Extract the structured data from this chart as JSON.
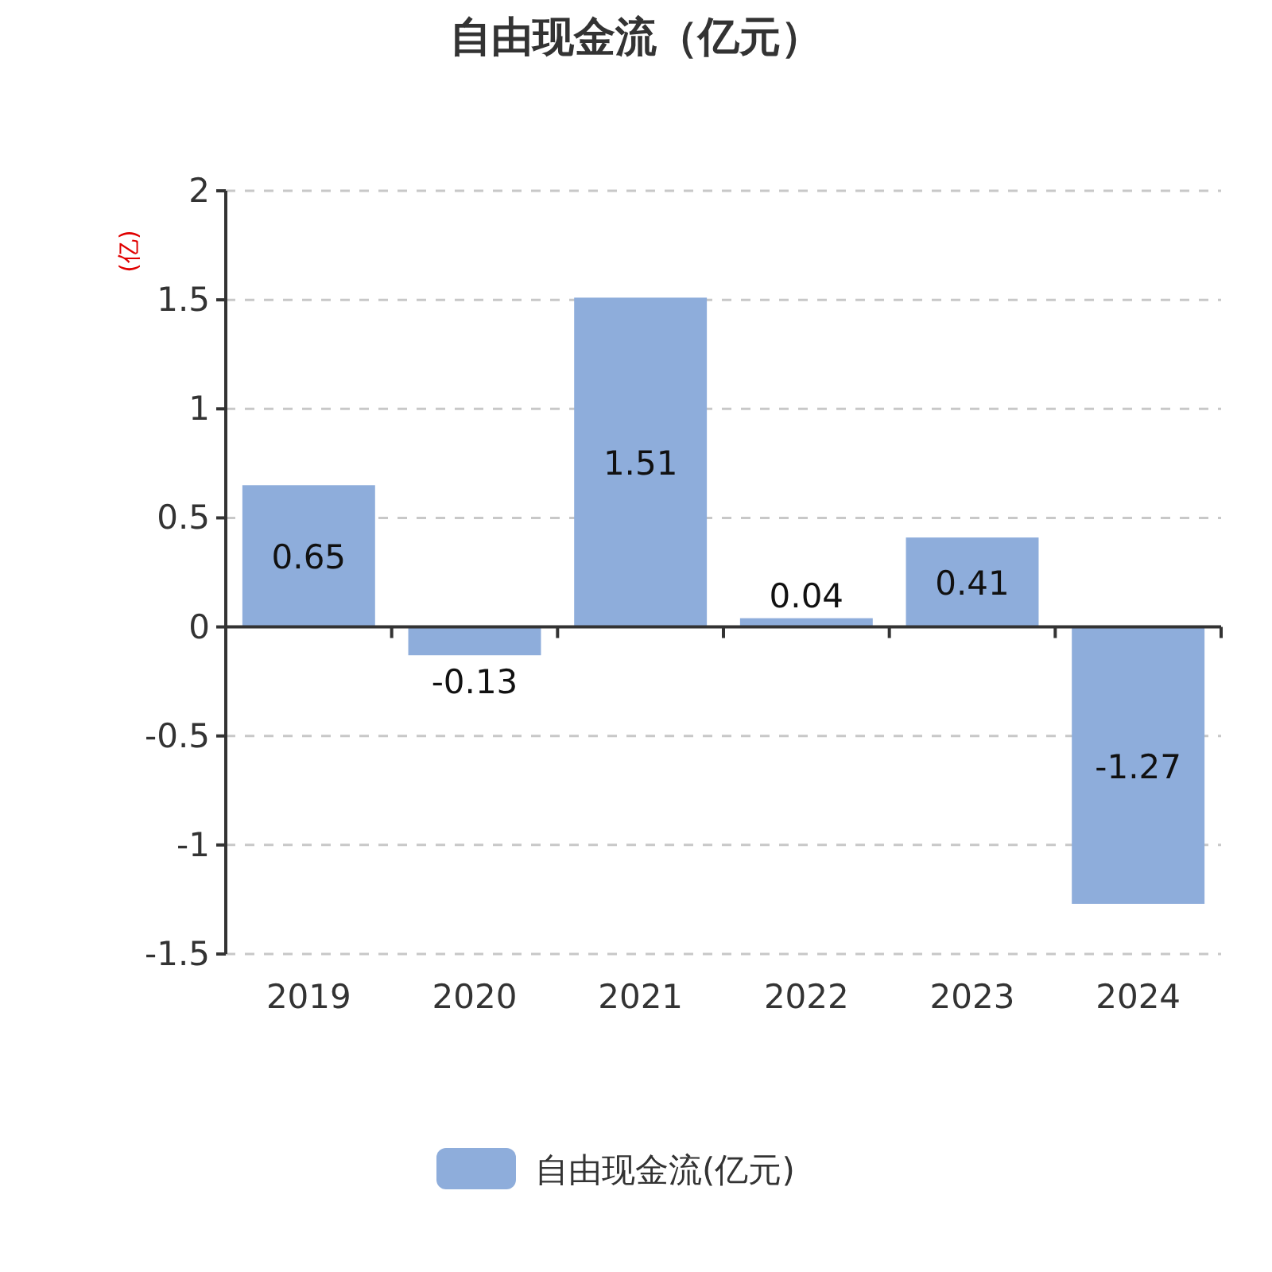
{
  "chart_data": {
    "type": "bar",
    "title": "自由现金流（亿元）",
    "ylabel": "(亿)",
    "categories": [
      "2019",
      "2020",
      "2021",
      "2022",
      "2023",
      "2024"
    ],
    "series": [
      {
        "name": "自由现金流(亿元)",
        "color": "#8eaddb",
        "values": [
          0.65,
          -0.13,
          1.51,
          0.04,
          0.41,
          -1.27
        ]
      }
    ],
    "ylim": [
      -1.5,
      2
    ],
    "yticks": [
      -1.5,
      -1,
      -0.5,
      0,
      0.5,
      1,
      1.5,
      2
    ],
    "grid": "y",
    "legend": "bottom",
    "data_labels": true
  }
}
